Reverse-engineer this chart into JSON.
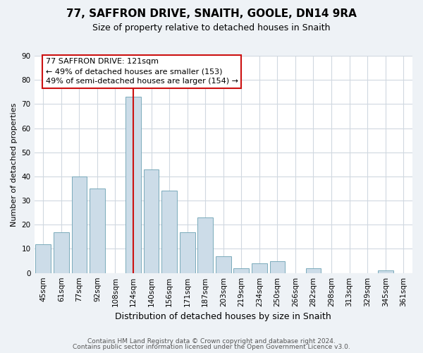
{
  "title": "77, SAFFRON DRIVE, SNAITH, GOOLE, DN14 9RA",
  "subtitle": "Size of property relative to detached houses in Snaith",
  "xlabel": "Distribution of detached houses by size in Snaith",
  "ylabel": "Number of detached properties",
  "categories": [
    "45sqm",
    "61sqm",
    "77sqm",
    "92sqm",
    "108sqm",
    "124sqm",
    "140sqm",
    "156sqm",
    "171sqm",
    "187sqm",
    "203sqm",
    "219sqm",
    "234sqm",
    "250sqm",
    "266sqm",
    "282sqm",
    "298sqm",
    "313sqm",
    "329sqm",
    "345sqm",
    "361sqm"
  ],
  "values": [
    12,
    17,
    40,
    35,
    0,
    73,
    43,
    34,
    17,
    23,
    7,
    2,
    4,
    5,
    0,
    2,
    0,
    0,
    0,
    1,
    0
  ],
  "bar_color": "#ccdce8",
  "bar_edge_color": "#7aaabb",
  "highlight_index": 5,
  "highlight_line_color": "#cc1111",
  "ylim": [
    0,
    90
  ],
  "yticks": [
    0,
    10,
    20,
    30,
    40,
    50,
    60,
    70,
    80,
    90
  ],
  "annotation_title": "77 SAFFRON DRIVE: 121sqm",
  "annotation_line1": "← 49% of detached houses are smaller (153)",
  "annotation_line2": "49% of semi-detached houses are larger (154) →",
  "footer1": "Contains HM Land Registry data © Crown copyright and database right 2024.",
  "footer2": "Contains public sector information licensed under the Open Government Licence v3.0.",
  "background_color": "#eef2f6",
  "plot_background_color": "#ffffff",
  "grid_color": "#d0d8e0",
  "ann_box_edge_color": "#cc1111",
  "title_fontsize": 11,
  "subtitle_fontsize": 9,
  "ylabel_fontsize": 8,
  "xlabel_fontsize": 9,
  "tick_fontsize": 7.5,
  "footer_fontsize": 6.5
}
